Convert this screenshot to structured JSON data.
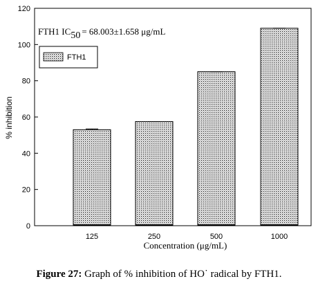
{
  "chart_data": {
    "type": "bar",
    "categories": [
      "125",
      "250",
      "500",
      "1000"
    ],
    "series": [
      {
        "name": "FTH1",
        "values": [
          53,
          57.5,
          85,
          109
        ],
        "errors": [
          0.4,
          0,
          0,
          0
        ]
      }
    ],
    "xlabel": "Concentration (μg/mL)",
    "ylabel": "% inhibition",
    "ylim": [
      0,
      120
    ],
    "yticks": [
      "0",
      "20",
      "40",
      "60",
      "80",
      "100",
      "120"
    ],
    "annotation": {
      "prefix": "FTH1 IC",
      "subscript": "50",
      "value": "= 68.003±1.658 μg/mL"
    },
    "legend_position": "top-left",
    "grid": false,
    "fill_pattern": "dotted"
  },
  "caption": {
    "label": "Figure 27:",
    "text": " Graph of % inhibition of HO˙ radical by FTH1."
  }
}
